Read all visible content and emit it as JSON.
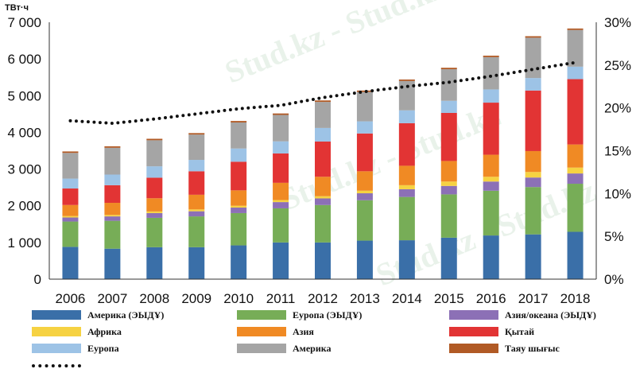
{
  "chart_data": {
    "type": "bar",
    "stacked": true,
    "categories": [
      "2006",
      "2007",
      "2008",
      "2009",
      "2010",
      "2011",
      "2012",
      "2013",
      "2014",
      "2015",
      "2016",
      "2017",
      "2018"
    ],
    "y_unit_label": "ТВт·ч",
    "ylim": [
      0,
      7000
    ],
    "yticks": [
      "0",
      "1 000",
      "2 000",
      "3 000",
      "4 000",
      "5 000",
      "6 000",
      "7 000"
    ],
    "y2lim": [
      0,
      30
    ],
    "y2ticks": [
      "0%",
      "5%",
      "10%",
      "15%",
      "20%",
      "25%",
      "30%"
    ],
    "grid": false,
    "series": [
      {
        "name": "Америка (ЭЫДҰ)",
        "color": "#3a6fa8",
        "values": [
          880,
          830,
          870,
          870,
          920,
          1000,
          1000,
          1050,
          1060,
          1130,
          1190,
          1220,
          1290
        ]
      },
      {
        "name": "Еуропа (ЭЫДҰ)",
        "color": "#77ad57",
        "values": [
          690,
          760,
          800,
          840,
          880,
          930,
          1020,
          1100,
          1180,
          1180,
          1220,
          1290,
          1310
        ]
      },
      {
        "name": "Азия/океана (ЭЫДҰ)",
        "color": "#8c70b6",
        "values": [
          110,
          120,
          130,
          140,
          150,
          170,
          180,
          190,
          210,
          230,
          250,
          260,
          280
        ]
      },
      {
        "name": "Африка",
        "color": "#f6d242",
        "values": [
          40,
          40,
          45,
          50,
          50,
          55,
          60,
          70,
          110,
          120,
          130,
          150,
          160
        ]
      },
      {
        "name": "Азия",
        "color": "#f08a24",
        "values": [
          300,
          330,
          360,
          400,
          420,
          470,
          530,
          530,
          530,
          560,
          600,
          570,
          630
        ]
      },
      {
        "name": "Қытай",
        "color": "#e23434",
        "values": [
          450,
          480,
          560,
          640,
          780,
          800,
          960,
          1030,
          1160,
          1310,
          1420,
          1650,
          1780
        ]
      },
      {
        "name": "Еуропа",
        "color": "#9dc3e6",
        "values": [
          270,
          290,
          310,
          310,
          360,
          330,
          370,
          330,
          350,
          330,
          360,
          340,
          340
        ]
      },
      {
        "name": "Америка",
        "color": "#a5a5a5",
        "values": [
          700,
          730,
          710,
          690,
          710,
          720,
          710,
          800,
          800,
          860,
          880,
          1100,
          1000
        ]
      },
      {
        "name": "Таяу шығыс",
        "color": "#b15a25",
        "values": [
          40,
          40,
          40,
          40,
          40,
          40,
          40,
          40,
          40,
          40,
          40,
          40,
          40
        ]
      }
    ],
    "line_series": {
      "axis": "right",
      "style": "dotted",
      "color": "#111111",
      "values": [
        18.5,
        18.2,
        18.7,
        19.3,
        19.9,
        20.3,
        21.2,
        21.9,
        22.5,
        23.0,
        23.7,
        24.5,
        25.3
      ]
    }
  },
  "watermark_text": "Stud.kz - Stud.kz"
}
